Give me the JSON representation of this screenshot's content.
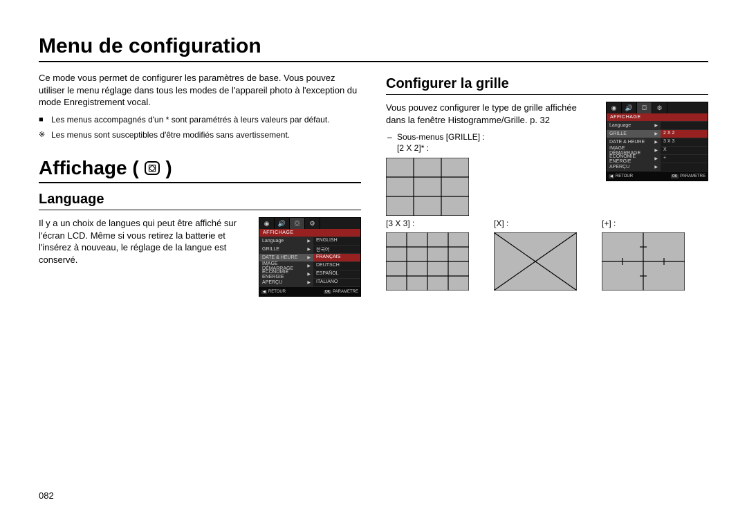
{
  "page_title": "Menu de configuration",
  "intro": "Ce mode vous permet de configurer les paramètres de base. Vous pouvez utiliser le menu réglage dans tous les modes de l'appareil photo à l'exception du mode Enregistrement vocal.",
  "note_default": "Les menus accompagnés d'un * sont paramétrés à leurs valeurs par défaut.",
  "note_change": "Les menus sont susceptibles d'être modifiés sans avertissement.",
  "section_affichage": "Affichage (",
  "section_affichage_close": ")",
  "language_heading": "Language",
  "language_text": "Il y a un choix de langues qui peut être affiché sur l'écran LCD. Même si vous retirez la batterie et l'insérez à nouveau, le réglage de la langue est conservé.",
  "grille_heading": "Configurer la grille",
  "grille_text": "Vous pouvez configurer le type de grille affichée dans la fenêtre Histogramme/Grille. p. 32",
  "grille_sub": "Sous-menus [GRILLE] :",
  "g_2x2": "[2 X 2]* :",
  "g_3x3": "[3 X 3] :",
  "g_x": "[X] :",
  "g_plus": "[+] :",
  "page_number": "082",
  "lcd_lang": {
    "header": "AFFICHAGE",
    "items": [
      {
        "l": "Language",
        "r": "ENGLISH"
      },
      {
        "l": "GRILLE",
        "r": "한국어"
      },
      {
        "l": "DATE & HEURE",
        "r": "FRANÇAIS",
        "sel": true
      },
      {
        "l": "IMAGE DÉMARRAGE",
        "r": "DEUTSCH"
      },
      {
        "l": "ECONOMIE ENERGIE",
        "r": "ESPAÑOL"
      },
      {
        "l": "APERÇU",
        "r": "ITALIANO"
      }
    ],
    "foot_back": "RETOUR",
    "foot_ok": "OK",
    "foot_set": "PARAMETRE"
  },
  "lcd_grille": {
    "header": "AFFICHAGE",
    "items": [
      {
        "l": "Language",
        "r": ""
      },
      {
        "l": "GRILLE",
        "r": "2 X 2",
        "sel": true
      },
      {
        "l": "DATE & HEURE",
        "r": "3 X 3"
      },
      {
        "l": "IMAGE DÉMARRAGE",
        "r": "X"
      },
      {
        "l": "ECONOMIE ENERGIE",
        "r": "+"
      },
      {
        "l": "APERÇU",
        "r": ""
      }
    ],
    "foot_back": "RETOUR",
    "foot_ok": "OK",
    "foot_set": "PARAMETRE"
  },
  "grid_style": {
    "w": 120,
    "h": 84,
    "fill": "#b8b8b8",
    "stroke": "#000000",
    "stroke_w": 1.2
  }
}
